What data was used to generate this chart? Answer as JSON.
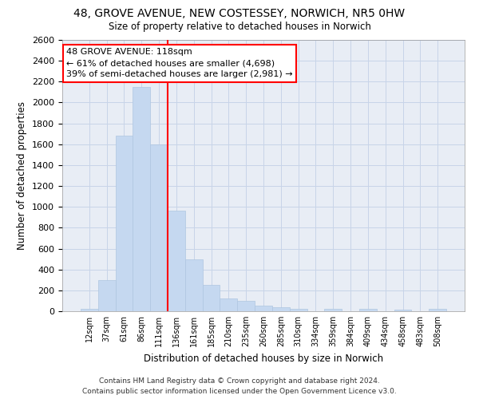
{
  "title_line1": "48, GROVE AVENUE, NEW COSTESSEY, NORWICH, NR5 0HW",
  "title_line2": "Size of property relative to detached houses in Norwich",
  "xlabel": "Distribution of detached houses by size in Norwich",
  "ylabel": "Number of detached properties",
  "categories": [
    "12sqm",
    "37sqm",
    "61sqm",
    "86sqm",
    "111sqm",
    "136sqm",
    "161sqm",
    "185sqm",
    "210sqm",
    "235sqm",
    "260sqm",
    "285sqm",
    "310sqm",
    "334sqm",
    "359sqm",
    "384sqm",
    "409sqm",
    "434sqm",
    "458sqm",
    "483sqm",
    "508sqm"
  ],
  "values": [
    25,
    300,
    1680,
    2150,
    1600,
    960,
    500,
    250,
    120,
    100,
    50,
    35,
    25,
    0,
    20,
    0,
    20,
    0,
    15,
    0,
    25
  ],
  "bar_color": "#c5d8f0",
  "bar_edge_color": "#aec6e0",
  "vline_color": "red",
  "annotation_text_line1": "48 GROVE AVENUE: 118sqm",
  "annotation_text_line2": "← 61% of detached houses are smaller (4,698)",
  "annotation_text_line3": "39% of semi-detached houses are larger (2,981) →",
  "annotation_box_color": "white",
  "annotation_box_edge_color": "red",
  "ylim_max": 2600,
  "ylim_min": 0,
  "yticks": [
    0,
    200,
    400,
    600,
    800,
    1000,
    1200,
    1400,
    1600,
    1800,
    2000,
    2200,
    2400,
    2600
  ],
  "grid_color": "#c8d4e8",
  "background_color": "#e8edf5",
  "footer_line1": "Contains HM Land Registry data © Crown copyright and database right 2024.",
  "footer_line2": "Contains public sector information licensed under the Open Government Licence v3.0.",
  "vline_bin_index": 4
}
